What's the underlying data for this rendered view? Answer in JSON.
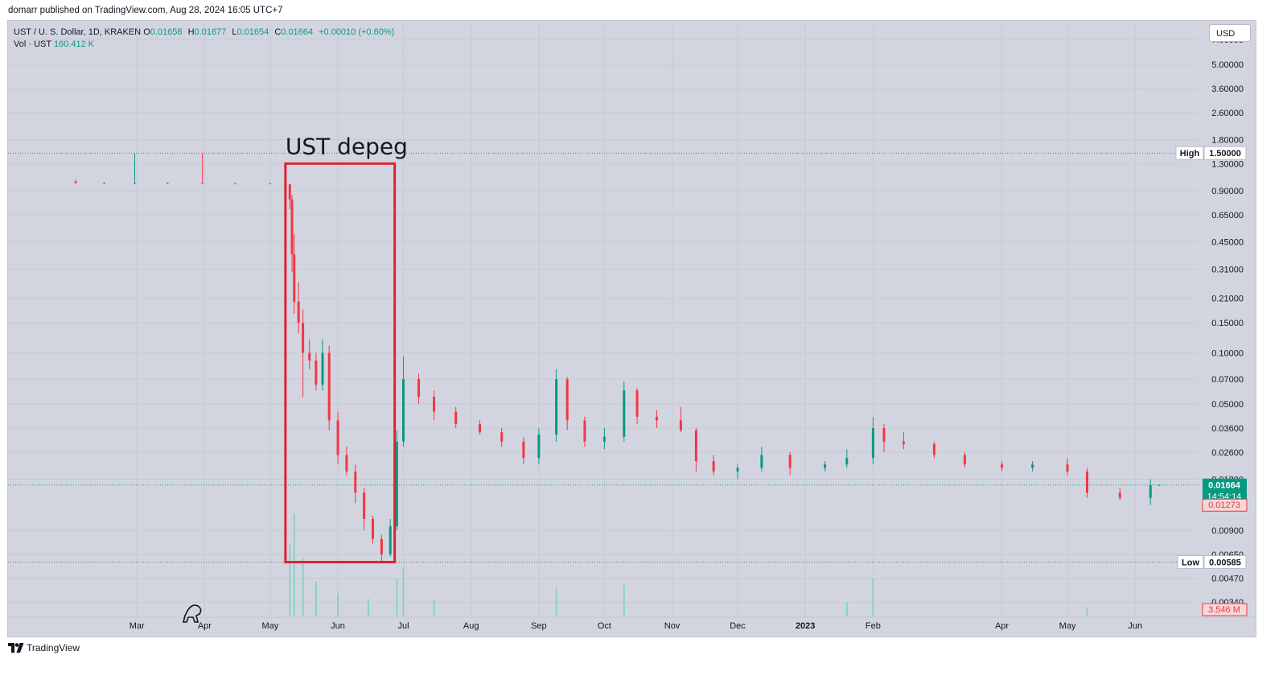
{
  "publisher_line": "domarr published on TradingView.com, Aug 28, 2024 16:05 UTC+7",
  "legend": {
    "symbol_line": "UST / U. S. Dollar, 1D, KRAKEN",
    "open_label": "O",
    "open": "0.01658",
    "high_label": "H",
    "high": "0.01677",
    "low_label": "L",
    "low": "0.01654",
    "close_label": "C",
    "close": "0.01664",
    "change": "+0.00010 (+0.60%)",
    "volume_label": "Vol · UST",
    "volume": "160.412 K"
  },
  "currency_button": "USD",
  "annotation": {
    "text": "UST depeg",
    "box_color": "#e0212e"
  },
  "price_scale": {
    "ticks": [
      "7.00000",
      "5.00000",
      "3.60000",
      "2.60000",
      "1.80000",
      "1.30000",
      "0.90000",
      "0.65000",
      "0.45000",
      "0.31000",
      "0.21000",
      "0.15000",
      "0.10000",
      "0.07000",
      "0.05000",
      "0.03600",
      "0.02600",
      "0.01800",
      "0.00900",
      "0.00650",
      "0.00470",
      "0.00340"
    ],
    "high_label": "High",
    "high_value": "1.50000",
    "low_label": "Low",
    "low_value": "0.00585",
    "last_price": "0.01664",
    "countdown": "14:54:14",
    "prev_marker": "0.01273",
    "volume_marker": "3.546 M"
  },
  "time_scale": [
    "Mar",
    "Apr",
    "May",
    "Jun",
    "Jul",
    "Aug",
    "Sep",
    "Oct",
    "Nov",
    "Dec",
    "2023",
    "Feb",
    "Apr",
    "May",
    "Jun"
  ],
  "brand": "TradingView",
  "colors": {
    "up": "#089981",
    "down": "#f23645",
    "pane": "#d2d5df"
  },
  "chart_data": {
    "type": "candlestick",
    "y_scale": "log",
    "ylim": [
      0.0028,
      9
    ],
    "x_range": [
      "2022-01-01",
      "2023-06-30"
    ],
    "ohlc": [
      {
        "date": "2022-02-01",
        "o": 1.02,
        "h": 1.05,
        "l": 0.99,
        "c": 1.0
      },
      {
        "date": "2022-02-14",
        "o": 1.0,
        "h": 1.01,
        "l": 0.995,
        "c": 1.0
      },
      {
        "date": "2022-02-28",
        "o": 1.0,
        "h": 1.5,
        "l": 0.99,
        "c": 1.0
      },
      {
        "date": "2022-03-15",
        "o": 1.0,
        "h": 1.01,
        "l": 0.99,
        "c": 1.0
      },
      {
        "date": "2022-03-31",
        "o": 1.0,
        "h": 1.5,
        "l": 0.99,
        "c": 0.997
      },
      {
        "date": "2022-04-15",
        "o": 0.997,
        "h": 1.0,
        "l": 0.995,
        "c": 0.998
      },
      {
        "date": "2022-05-01",
        "o": 0.998,
        "h": 1.0,
        "l": 0.99,
        "c": 0.995
      },
      {
        "date": "2022-05-08",
        "o": 0.995,
        "h": 0.998,
        "l": 0.97,
        "c": 0.98
      },
      {
        "date": "2022-05-10",
        "o": 0.98,
        "h": 0.99,
        "l": 0.7,
        "c": 0.8
      },
      {
        "date": "2022-05-11",
        "o": 0.8,
        "h": 0.85,
        "l": 0.3,
        "c": 0.38
      },
      {
        "date": "2022-05-12",
        "o": 0.38,
        "h": 0.5,
        "l": 0.17,
        "c": 0.2
      },
      {
        "date": "2022-05-14",
        "o": 0.2,
        "h": 0.26,
        "l": 0.13,
        "c": 0.15
      },
      {
        "date": "2022-05-16",
        "o": 0.15,
        "h": 0.18,
        "l": 0.055,
        "c": 0.1
      },
      {
        "date": "2022-05-19",
        "o": 0.1,
        "h": 0.12,
        "l": 0.08,
        "c": 0.09
      },
      {
        "date": "2022-05-22",
        "o": 0.09,
        "h": 0.1,
        "l": 0.06,
        "c": 0.065
      },
      {
        "date": "2022-05-25",
        "o": 0.065,
        "h": 0.12,
        "l": 0.06,
        "c": 0.1
      },
      {
        "date": "2022-05-28",
        "o": 0.1,
        "h": 0.11,
        "l": 0.035,
        "c": 0.04
      },
      {
        "date": "2022-06-01",
        "o": 0.04,
        "h": 0.045,
        "l": 0.022,
        "c": 0.025
      },
      {
        "date": "2022-06-05",
        "o": 0.025,
        "h": 0.028,
        "l": 0.019,
        "c": 0.02
      },
      {
        "date": "2022-06-09",
        "o": 0.02,
        "h": 0.022,
        "l": 0.013,
        "c": 0.015
      },
      {
        "date": "2022-06-13",
        "o": 0.015,
        "h": 0.016,
        "l": 0.009,
        "c": 0.0105
      },
      {
        "date": "2022-06-17",
        "o": 0.0105,
        "h": 0.011,
        "l": 0.0075,
        "c": 0.008
      },
      {
        "date": "2022-06-21",
        "o": 0.008,
        "h": 0.0085,
        "l": 0.00585,
        "c": 0.0065
      },
      {
        "date": "2022-06-25",
        "o": 0.0065,
        "h": 0.0105,
        "l": 0.0063,
        "c": 0.0095
      },
      {
        "date": "2022-06-28",
        "o": 0.0095,
        "h": 0.035,
        "l": 0.009,
        "c": 0.03
      },
      {
        "date": "2022-07-01",
        "o": 0.03,
        "h": 0.095,
        "l": 0.028,
        "c": 0.07
      },
      {
        "date": "2022-07-08",
        "o": 0.07,
        "h": 0.075,
        "l": 0.05,
        "c": 0.055
      },
      {
        "date": "2022-07-15",
        "o": 0.055,
        "h": 0.06,
        "l": 0.04,
        "c": 0.045
      },
      {
        "date": "2022-07-25",
        "o": 0.045,
        "h": 0.048,
        "l": 0.036,
        "c": 0.038
      },
      {
        "date": "2022-08-05",
        "o": 0.038,
        "h": 0.04,
        "l": 0.033,
        "c": 0.034
      },
      {
        "date": "2022-08-15",
        "o": 0.034,
        "h": 0.036,
        "l": 0.028,
        "c": 0.03
      },
      {
        "date": "2022-08-25",
        "o": 0.03,
        "h": 0.032,
        "l": 0.022,
        "c": 0.024
      },
      {
        "date": "2022-09-01",
        "o": 0.024,
        "h": 0.036,
        "l": 0.022,
        "c": 0.033
      },
      {
        "date": "2022-09-09",
        "o": 0.033,
        "h": 0.08,
        "l": 0.03,
        "c": 0.07
      },
      {
        "date": "2022-09-14",
        "o": 0.07,
        "h": 0.072,
        "l": 0.035,
        "c": 0.04
      },
      {
        "date": "2022-09-22",
        "o": 0.04,
        "h": 0.042,
        "l": 0.028,
        "c": 0.03
      },
      {
        "date": "2022-10-01",
        "o": 0.03,
        "h": 0.036,
        "l": 0.027,
        "c": 0.032
      },
      {
        "date": "2022-10-10",
        "o": 0.032,
        "h": 0.068,
        "l": 0.03,
        "c": 0.06
      },
      {
        "date": "2022-10-16",
        "o": 0.06,
        "h": 0.062,
        "l": 0.038,
        "c": 0.042
      },
      {
        "date": "2022-10-25",
        "o": 0.042,
        "h": 0.046,
        "l": 0.036,
        "c": 0.04
      },
      {
        "date": "2022-11-05",
        "o": 0.04,
        "h": 0.048,
        "l": 0.034,
        "c": 0.035
      },
      {
        "date": "2022-11-12",
        "o": 0.035,
        "h": 0.036,
        "l": 0.02,
        "c": 0.023
      },
      {
        "date": "2022-11-20",
        "o": 0.023,
        "h": 0.025,
        "l": 0.019,
        "c": 0.02
      },
      {
        "date": "2022-12-01",
        "o": 0.02,
        "h": 0.022,
        "l": 0.018,
        "c": 0.021
      },
      {
        "date": "2022-12-12",
        "o": 0.021,
        "h": 0.028,
        "l": 0.02,
        "c": 0.025
      },
      {
        "date": "2022-12-25",
        "o": 0.025,
        "h": 0.026,
        "l": 0.019,
        "c": 0.021
      },
      {
        "date": "2023-01-10",
        "o": 0.021,
        "h": 0.023,
        "l": 0.02,
        "c": 0.022
      },
      {
        "date": "2023-01-20",
        "o": 0.022,
        "h": 0.027,
        "l": 0.021,
        "c": 0.024
      },
      {
        "date": "2023-02-01",
        "o": 0.024,
        "h": 0.042,
        "l": 0.022,
        "c": 0.036
      },
      {
        "date": "2023-02-06",
        "o": 0.036,
        "h": 0.038,
        "l": 0.026,
        "c": 0.03
      },
      {
        "date": "2023-02-15",
        "o": 0.03,
        "h": 0.034,
        "l": 0.027,
        "c": 0.029
      },
      {
        "date": "2023-03-01",
        "o": 0.029,
        "h": 0.03,
        "l": 0.024,
        "c": 0.025
      },
      {
        "date": "2023-03-15",
        "o": 0.025,
        "h": 0.026,
        "l": 0.021,
        "c": 0.022
      },
      {
        "date": "2023-04-01",
        "o": 0.022,
        "h": 0.023,
        "l": 0.02,
        "c": 0.021
      },
      {
        "date": "2023-04-15",
        "o": 0.021,
        "h": 0.023,
        "l": 0.02,
        "c": 0.022
      },
      {
        "date": "2023-05-01",
        "o": 0.022,
        "h": 0.024,
        "l": 0.019,
        "c": 0.02
      },
      {
        "date": "2023-05-10",
        "o": 0.02,
        "h": 0.021,
        "l": 0.014,
        "c": 0.015
      },
      {
        "date": "2023-05-25",
        "o": 0.015,
        "h": 0.016,
        "l": 0.0135,
        "c": 0.014
      },
      {
        "date": "2023-06-08",
        "o": 0.014,
        "h": 0.018,
        "l": 0.0127,
        "c": 0.0166
      },
      {
        "date": "2023-06-12",
        "o": 0.01658,
        "h": 0.01677,
        "l": 0.01654,
        "c": 0.01664
      }
    ],
    "volume_series": [
      {
        "date": "2022-05-10",
        "v": 2.5
      },
      {
        "date": "2022-05-12",
        "v": 3.546
      },
      {
        "date": "2022-05-16",
        "v": 2.0
      },
      {
        "date": "2022-05-22",
        "v": 1.2
      },
      {
        "date": "2022-06-01",
        "v": 0.8
      },
      {
        "date": "2022-06-15",
        "v": 0.6
      },
      {
        "date": "2022-06-28",
        "v": 1.3
      },
      {
        "date": "2022-07-01",
        "v": 1.7
      },
      {
        "date": "2022-07-15",
        "v": 0.6
      },
      {
        "date": "2022-09-09",
        "v": 1.0
      },
      {
        "date": "2022-10-10",
        "v": 1.1
      },
      {
        "date": "2023-01-20",
        "v": 0.5
      },
      {
        "date": "2023-02-01",
        "v": 1.3
      },
      {
        "date": "2023-05-10",
        "v": 0.3
      }
    ],
    "annotation_range": {
      "x": [
        "2022-05-08",
        "2022-06-27"
      ],
      "y": [
        0.00585,
        1.3
      ]
    }
  }
}
